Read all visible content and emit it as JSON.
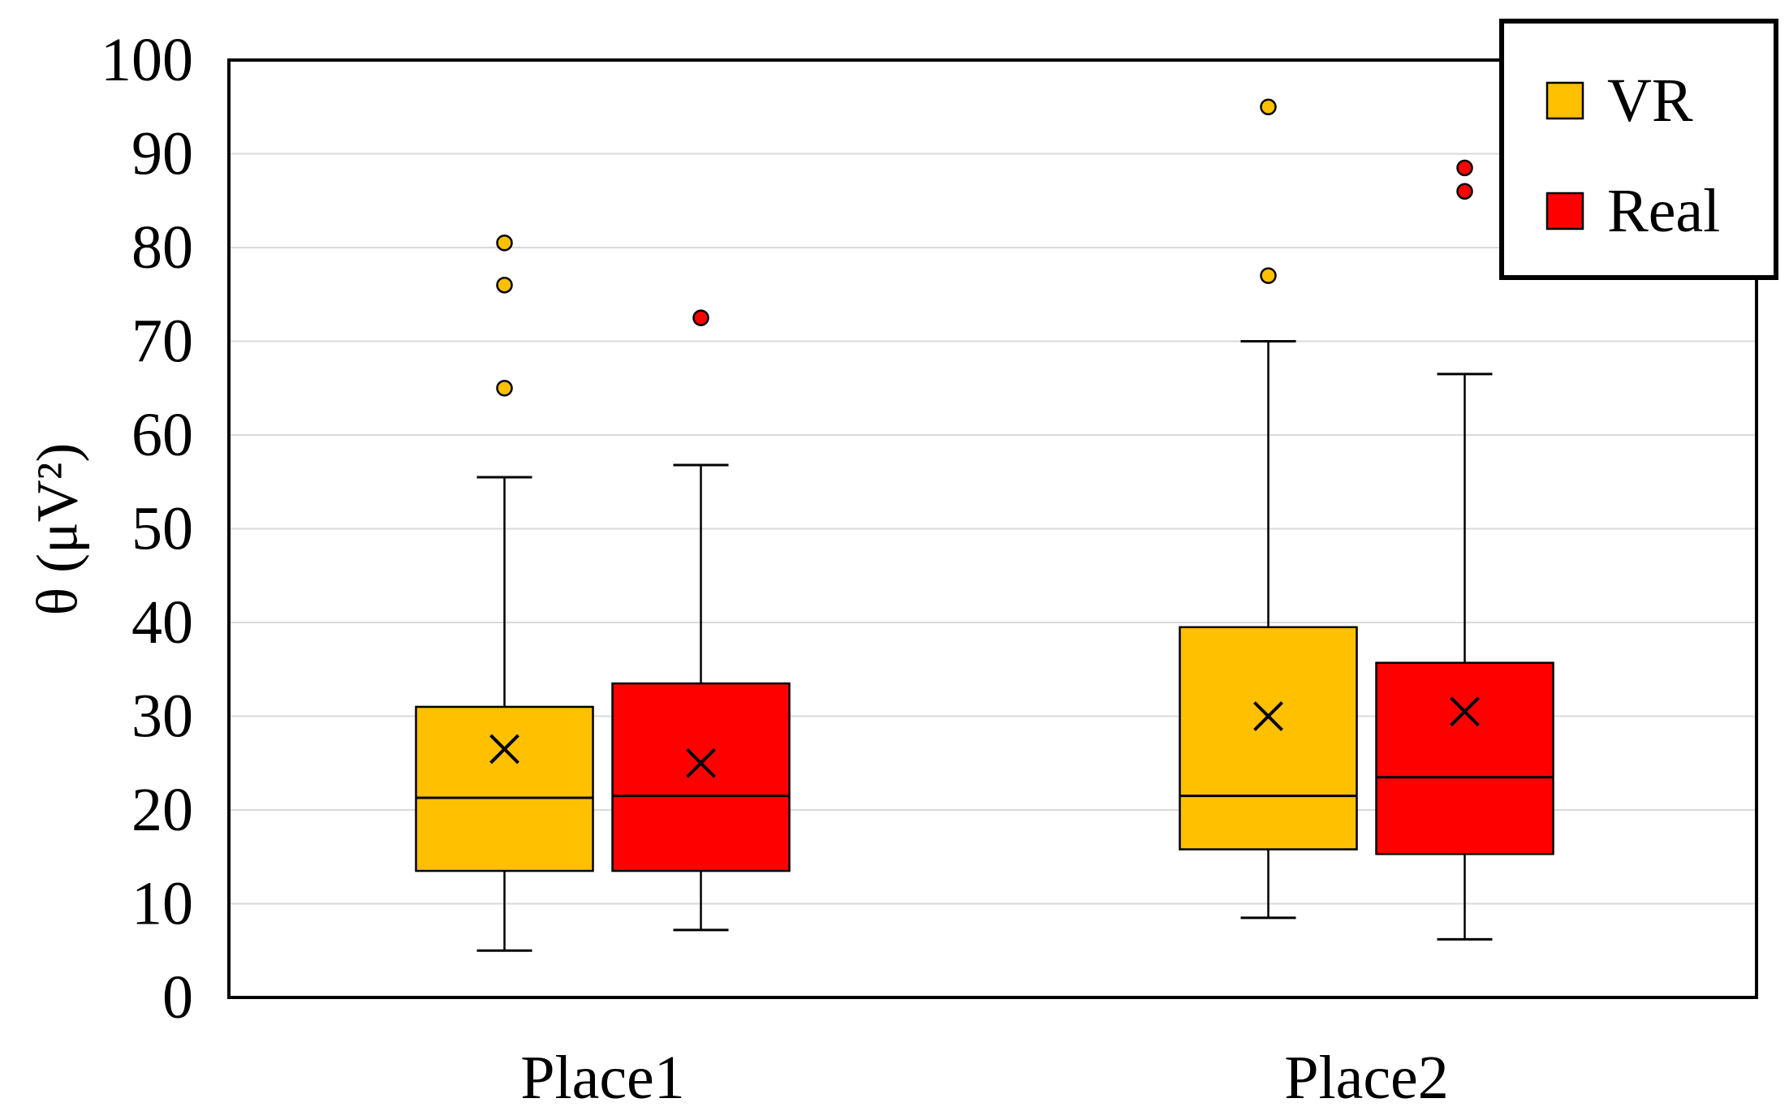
{
  "chart_data": {
    "type": "boxplot",
    "ylabel": "θ (μV²)",
    "ylim": [
      0,
      100
    ],
    "yticks": [
      "0",
      "10",
      "20",
      "30",
      "40",
      "50",
      "60",
      "70",
      "80",
      "90",
      "100"
    ],
    "grid": true,
    "legend_position": "top-right",
    "categories": [
      "Place1",
      "Place2"
    ],
    "series": [
      {
        "name": "VR",
        "color": "#FFC000",
        "boxes": [
          {
            "category": "Place1",
            "whisker_low": 5,
            "q1": 13.5,
            "median": 21.3,
            "q3": 31,
            "whisker_high": 55.5,
            "mean": 26.5,
            "outliers": [
              65,
              76,
              80.5
            ]
          },
          {
            "category": "Place2",
            "whisker_low": 8.5,
            "q1": 15.8,
            "median": 21.5,
            "q3": 39.5,
            "whisker_high": 70,
            "mean": 30,
            "outliers": [
              77,
              95
            ]
          }
        ]
      },
      {
        "name": "Real",
        "color": "#FF0000",
        "boxes": [
          {
            "category": "Place1",
            "whisker_low": 7.2,
            "q1": 13.5,
            "median": 21.5,
            "q3": 33.5,
            "whisker_high": 56.8,
            "mean": 25,
            "outliers": [
              72.5
            ]
          },
          {
            "category": "Place2",
            "whisker_low": 6.2,
            "q1": 15.3,
            "median": 23.5,
            "q3": 35.7,
            "whisker_high": 66.5,
            "mean": 30.5,
            "outliers": [
              86,
              88.5
            ]
          }
        ]
      }
    ]
  }
}
